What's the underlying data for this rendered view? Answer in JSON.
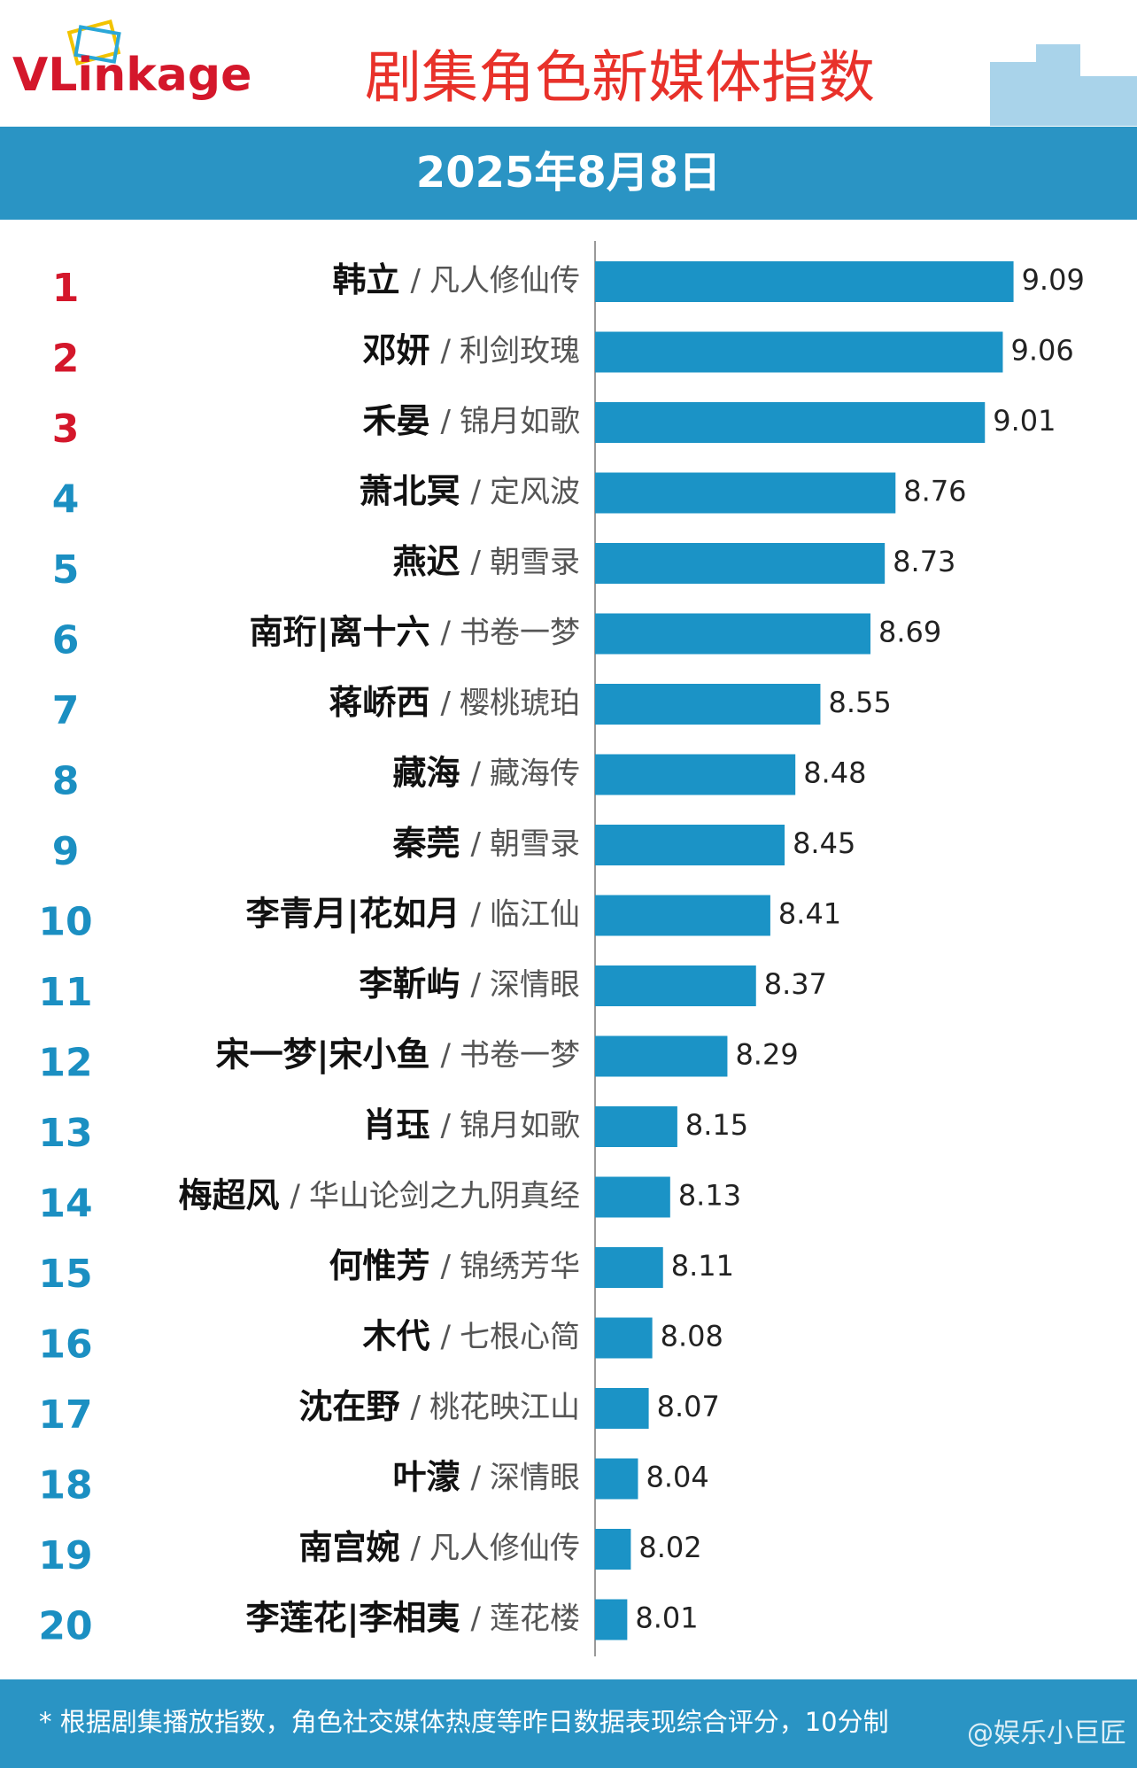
{
  "chart_data": {
    "type": "bar",
    "orientation": "horizontal",
    "logo": "VLinkage",
    "title": "剧集角色新媒体指数",
    "subtitle": "2025年8月8日",
    "ranks": [
      1,
      2,
      3,
      4,
      5,
      6,
      7,
      8,
      9,
      10,
      11,
      12,
      13,
      14,
      15,
      16,
      17,
      18,
      19,
      20
    ],
    "separator": "/",
    "categories": [
      "韩立",
      "邓妍",
      "禾晏",
      "萧北冥",
      "燕迟",
      "南珩|离十六",
      "蒋峤西",
      "藏海",
      "秦莞",
      "李青月|花如月",
      "李靳屿",
      "宋一梦|宋小鱼",
      "肖珏",
      "梅超风",
      "何惟芳",
      "木代",
      "沈在野",
      "叶濛",
      "南宫婉",
      "李莲花|李相夷"
    ],
    "shows": [
      "凡人修仙传",
      "利剑玫瑰",
      "锦月如歌",
      "定风波",
      "朝雪录",
      "书卷一梦",
      "樱桃琥珀",
      "藏海传",
      "朝雪录",
      "临江仙",
      "深情眼",
      "书卷一梦",
      "锦月如歌",
      "华山论剑之九阴真经",
      "锦绣芳华",
      "七根心简",
      "桃花映江山",
      "深情眼",
      "凡人修仙传",
      "莲花楼"
    ],
    "values": [
      9.09,
      9.06,
      9.01,
      8.76,
      8.73,
      8.69,
      8.55,
      8.48,
      8.45,
      8.41,
      8.37,
      8.29,
      8.15,
      8.13,
      8.11,
      8.08,
      8.07,
      8.04,
      8.02,
      8.01
    ],
    "color": "#1b93c6",
    "top_rank_color": "#d4172b",
    "rank_color": "#1b8fc2",
    "xlim": [
      7.92,
      9.2
    ],
    "footnote": "* 根据剧集播放指数，角色社交媒体热度等昨日数据表现综合评分，10分制",
    "watermark": "@娱乐小巨匠"
  }
}
